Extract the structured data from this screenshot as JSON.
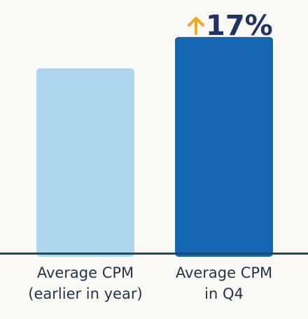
{
  "chart_data": {
    "type": "bar",
    "categories": [
      [
        "Average CPM",
        "(earlier in year)"
      ],
      [
        "Average CPM",
        "in Q4"
      ]
    ],
    "values": [
      100,
      117
    ],
    "ylim": [
      0,
      137
    ],
    "grid": false,
    "legend": "none",
    "annotation": {
      "text": "17%",
      "direction": "up",
      "target_index": 1
    },
    "colors": {
      "bars": [
        "#aed6ee",
        "#1565b0"
      ],
      "baseline": "#1e4a5f",
      "annotation_text": "#1f3366",
      "arrow": "#f5a623",
      "label_text": "#243447",
      "background": "#fbf9f6"
    },
    "icons": {
      "annotation_arrow": "up-arrow-icon"
    }
  }
}
